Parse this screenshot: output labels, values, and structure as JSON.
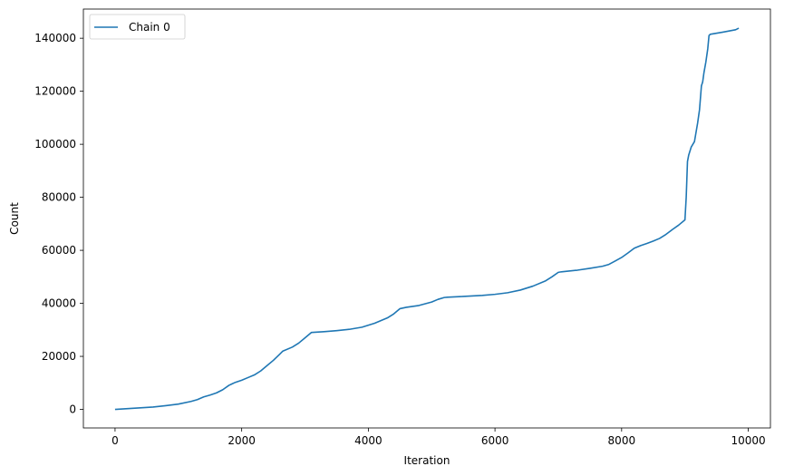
{
  "chart_data": {
    "type": "line",
    "title": "",
    "xlabel": "Iteration",
    "ylabel": "Count",
    "xlim": [
      -500,
      10350
    ],
    "ylim": [
      -7000,
      151000
    ],
    "xticks": [
      0,
      2000,
      4000,
      6000,
      8000,
      10000
    ],
    "yticks": [
      0,
      20000,
      40000,
      60000,
      80000,
      100000,
      120000,
      140000
    ],
    "grid": false,
    "legend": {
      "placement": "top-left"
    },
    "series": [
      {
        "name": "Chain 0",
        "color": "#1f77b4",
        "x": [
          0,
          200,
          400,
          600,
          800,
          1000,
          1200,
          1300,
          1400,
          1500,
          1600,
          1700,
          1800,
          1900,
          2000,
          2100,
          2200,
          2300,
          2400,
          2500,
          2600,
          2650,
          2800,
          2900,
          3000,
          3100,
          3300,
          3500,
          3700,
          3900,
          4100,
          4300,
          4400,
          4500,
          4600,
          4800,
          5000,
          5100,
          5200,
          5250,
          5500,
          5800,
          6000,
          6200,
          6400,
          6600,
          6800,
          6900,
          7000,
          7050,
          7300,
          7500,
          7700,
          7800,
          7900,
          8000,
          8100,
          8200,
          8300,
          8400,
          8500,
          8600,
          8700,
          8800,
          8900,
          9000,
          9020,
          9040,
          9060,
          9100,
          9150,
          9200,
          9230,
          9260,
          9280,
          9300,
          9330,
          9360,
          9380,
          9400,
          9600,
          9800,
          9850
        ],
        "y": [
          0,
          300,
          600,
          900,
          1400,
          2000,
          3000,
          3700,
          4700,
          5400,
          6200,
          7400,
          9100,
          10200,
          11000,
          12000,
          13000,
          14500,
          16500,
          18500,
          20800,
          22000,
          23500,
          25000,
          27000,
          29000,
          29300,
          29700,
          30200,
          31000,
          32500,
          34500,
          36000,
          38000,
          38500,
          39200,
          40500,
          41500,
          42200,
          42300,
          42600,
          43000,
          43400,
          44000,
          45000,
          46500,
          48500,
          50000,
          51700,
          51900,
          52500,
          53200,
          54000,
          54700,
          56000,
          57300,
          59000,
          60800,
          61800,
          62600,
          63500,
          64500,
          66000,
          67800,
          69500,
          71500,
          80000,
          93500,
          96000,
          99000,
          101000,
          108000,
          113000,
          122000,
          123500,
          127000,
          131000,
          136000,
          141000,
          141500,
          142300,
          143200,
          143800
        ]
      }
    ]
  }
}
